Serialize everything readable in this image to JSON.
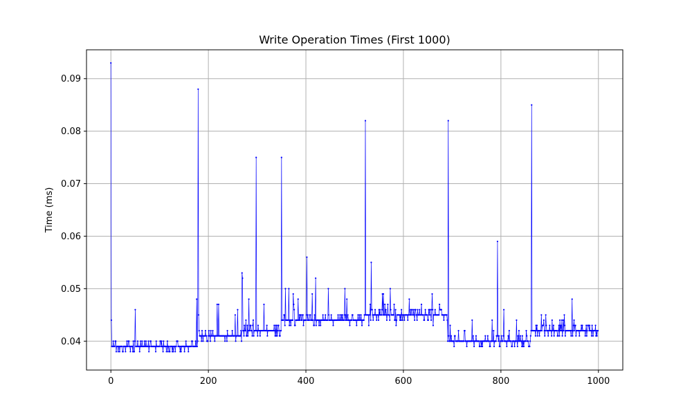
{
  "chart_data": {
    "type": "line",
    "title": "Write Operation Times (First 1000)",
    "xlabel": "",
    "ylabel": "Time (ms)",
    "xlim": [
      -50,
      1050
    ],
    "ylim": [
      0.0345,
      0.0955
    ],
    "x_ticks": [
      0,
      200,
      400,
      600,
      800,
      1000
    ],
    "x_tick_labels": [
      "0",
      "200",
      "400",
      "600",
      "800",
      "1000"
    ],
    "y_ticks": [
      0.04,
      0.05,
      0.06,
      0.07,
      0.08,
      0.09
    ],
    "y_tick_labels": [
      "0.04",
      "0.05",
      "0.06",
      "0.07",
      "0.08",
      "0.09"
    ],
    "grid": true,
    "series_color": "#0000ff",
    "n_points": 1000,
    "segments": [
      {
        "x_start": 0,
        "x_end": 179,
        "base": 0.039,
        "noise": [
          0.037,
          0.042
        ]
      },
      {
        "x_start": 180,
        "x_end": 269,
        "base": 0.041,
        "noise": [
          0.04,
          0.047
        ]
      },
      {
        "x_start": 270,
        "x_end": 349,
        "base": 0.042,
        "noise": [
          0.042,
          0.05
        ]
      },
      {
        "x_start": 350,
        "x_end": 519,
        "base": 0.044,
        "noise": [
          0.043,
          0.05
        ]
      },
      {
        "x_start": 520,
        "x_end": 690,
        "base": 0.045,
        "noise": [
          0.043,
          0.05
        ]
      },
      {
        "x_start": 691,
        "x_end": 863,
        "base": 0.04,
        "noise": [
          0.039,
          0.044
        ]
      },
      {
        "x_start": 864,
        "x_end": 999,
        "base": 0.042,
        "noise": [
          0.041,
          0.045
        ]
      }
    ],
    "spikes": [
      {
        "x": 0,
        "y": 0.093
      },
      {
        "x": 1,
        "y": 0.044
      },
      {
        "x": 50,
        "y": 0.046
      },
      {
        "x": 176,
        "y": 0.048
      },
      {
        "x": 179,
        "y": 0.088
      },
      {
        "x": 221,
        "y": 0.047
      },
      {
        "x": 269,
        "y": 0.053
      },
      {
        "x": 270,
        "y": 0.052
      },
      {
        "x": 298,
        "y": 0.075
      },
      {
        "x": 350,
        "y": 0.075
      },
      {
        "x": 402,
        "y": 0.056
      },
      {
        "x": 420,
        "y": 0.052
      },
      {
        "x": 480,
        "y": 0.05
      },
      {
        "x": 522,
        "y": 0.082
      },
      {
        "x": 534,
        "y": 0.055
      },
      {
        "x": 573,
        "y": 0.05
      },
      {
        "x": 692,
        "y": 0.082
      },
      {
        "x": 793,
        "y": 0.059
      },
      {
        "x": 806,
        "y": 0.046
      },
      {
        "x": 832,
        "y": 0.044
      },
      {
        "x": 863,
        "y": 0.085
      },
      {
        "x": 946,
        "y": 0.048
      }
    ]
  }
}
